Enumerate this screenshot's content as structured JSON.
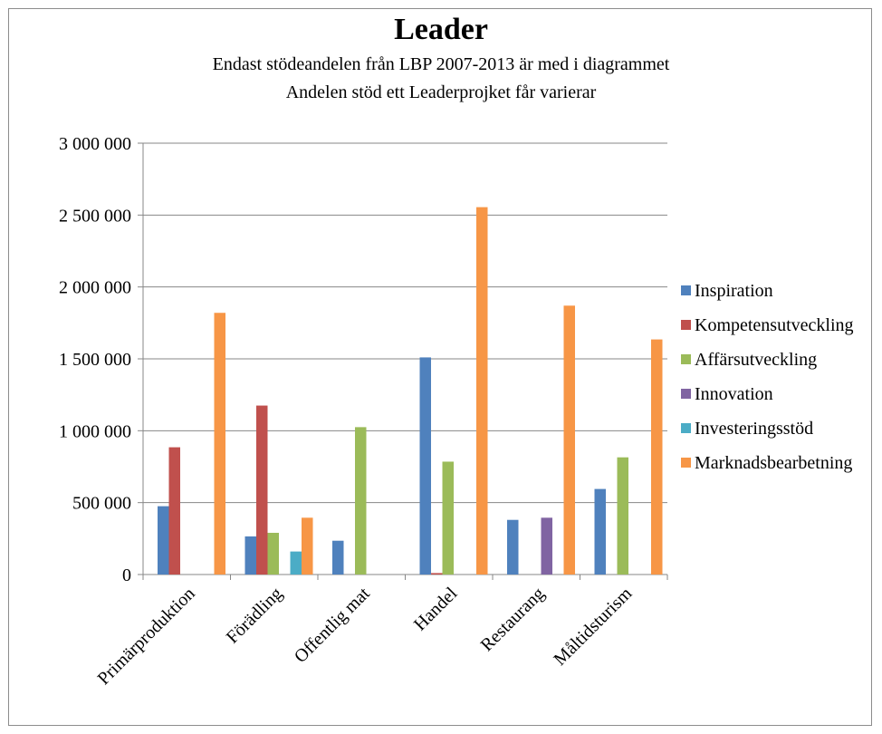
{
  "chart_data": {
    "type": "bar",
    "title": "Leader",
    "subtitle_lines": [
      "Endast stödeandelen från LBP 2007-2013 är med i diagrammet",
      "Andelen  stöd ett Leaderprojket får varierar"
    ],
    "categories": [
      "Primärproduktion",
      "Förädling",
      "Offentlig mat",
      "Handel",
      "Restaurang",
      "Måltidsturism"
    ],
    "ylim": [
      0,
      3000000
    ],
    "yticks": [
      0,
      500000,
      1000000,
      1500000,
      2000000,
      2500000,
      3000000
    ],
    "ytick_labels": [
      "0",
      "500 000",
      "1 000 000",
      "1 500 000",
      "2 000 000",
      "2 500 000",
      "3 000 000"
    ],
    "grid": true,
    "legend_position": "right",
    "series": [
      {
        "name": "Inspiration",
        "color": "#4f81bd",
        "values": [
          475000,
          265000,
          235000,
          1510000,
          380000,
          595000
        ]
      },
      {
        "name": "Kompetensutveckling",
        "color": "#c0504d",
        "values": [
          885000,
          1175000,
          0,
          10000,
          0,
          0
        ]
      },
      {
        "name": "Affärsutveckling",
        "color": "#9bbb59",
        "values": [
          0,
          290000,
          1025000,
          785000,
          0,
          815000
        ]
      },
      {
        "name": "Innovation",
        "color": "#8064a2",
        "values": [
          0,
          0,
          0,
          0,
          395000,
          0
        ]
      },
      {
        "name": "Investeringsstöd",
        "color": "#4bacc6",
        "values": [
          0,
          160000,
          0,
          0,
          0,
          0
        ]
      },
      {
        "name": "Marknadsbearbetning",
        "color": "#f79646",
        "values": [
          1820000,
          395000,
          0,
          2555000,
          1870000,
          1635000
        ]
      }
    ]
  }
}
